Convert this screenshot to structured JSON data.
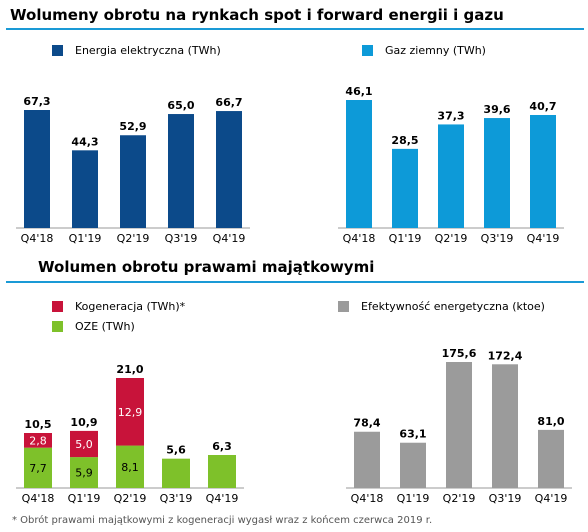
{
  "top_title": "Wolumeny obrotu na rynkach spot i forward energii i gazu",
  "bottom_title": "Wolumen obrotu prawami majątkowymi",
  "footnote": "* Obrót prawami majątkowymi z kogeneracji wygasł wraz z końcem czerwca 2019 r.",
  "colors": {
    "energia": "#0c4a8a",
    "gaz": "#0d9ad8",
    "kogeneracja": "#c8133a",
    "oze": "#7ec12a",
    "efektywnosc": "#9b9b9b",
    "rule": "#1a9ad6"
  },
  "legends": {
    "energia": "Energia elektryczna (TWh)",
    "gaz": "Gaz ziemny (TWh)",
    "kogeneracja": "Kogeneracja (TWh)*",
    "oze": "OZE (TWh)",
    "efektywnosc": "Efektywność energetyczna (ktoe)"
  },
  "chart_data": [
    {
      "type": "bar",
      "categories": [
        "Q4'18",
        "Q1'19",
        "Q2'19",
        "Q3'19",
        "Q4'19"
      ],
      "series": [
        {
          "name": "Energia elektryczna (TWh)",
          "values": [
            67.3,
            44.3,
            52.9,
            65.0,
            66.7
          ],
          "labels": [
            "67,3",
            "44,3",
            "52,9",
            "65,0",
            "66,7"
          ]
        }
      ]
    },
    {
      "type": "bar",
      "categories": [
        "Q4'18",
        "Q1'19",
        "Q2'19",
        "Q3'19",
        "Q4'19"
      ],
      "series": [
        {
          "name": "Gaz ziemny (TWh)",
          "values": [
            46.1,
            28.5,
            37.3,
            39.6,
            40.7
          ],
          "labels": [
            "46,1",
            "28,5",
            "37,3",
            "39,6",
            "40,7"
          ]
        }
      ]
    },
    {
      "type": "bar",
      "stacked": true,
      "categories": [
        "Q4'18",
        "Q1'19",
        "Q2'19",
        "Q3'19",
        "Q4'19"
      ],
      "series": [
        {
          "name": "OZE (TWh)",
          "values": [
            7.7,
            5.9,
            8.1,
            5.6,
            6.3
          ],
          "labels": [
            "7,7",
            "5,9",
            "8,1",
            "",
            ""
          ]
        },
        {
          "name": "Kogeneracja (TWh)*",
          "values": [
            2.8,
            5.0,
            12.9,
            0,
            0
          ],
          "labels": [
            "2,8",
            "5,0",
            "12,9",
            "",
            ""
          ]
        }
      ],
      "totals": [
        10.5,
        10.9,
        21.0,
        5.6,
        6.3
      ],
      "total_labels": [
        "10,5",
        "10,9",
        "21,0",
        "5,6",
        "6,3"
      ]
    },
    {
      "type": "bar",
      "categories": [
        "Q4'18",
        "Q1'19",
        "Q2'19",
        "Q3'19",
        "Q4'19"
      ],
      "series": [
        {
          "name": "Efektywność energetyczna (ktoe)",
          "values": [
            78.4,
            63.1,
            175.6,
            172.4,
            81.0
          ],
          "labels": [
            "78,4",
            "63,1",
            "175,6",
            "172,4",
            "81,0"
          ]
        }
      ]
    }
  ]
}
